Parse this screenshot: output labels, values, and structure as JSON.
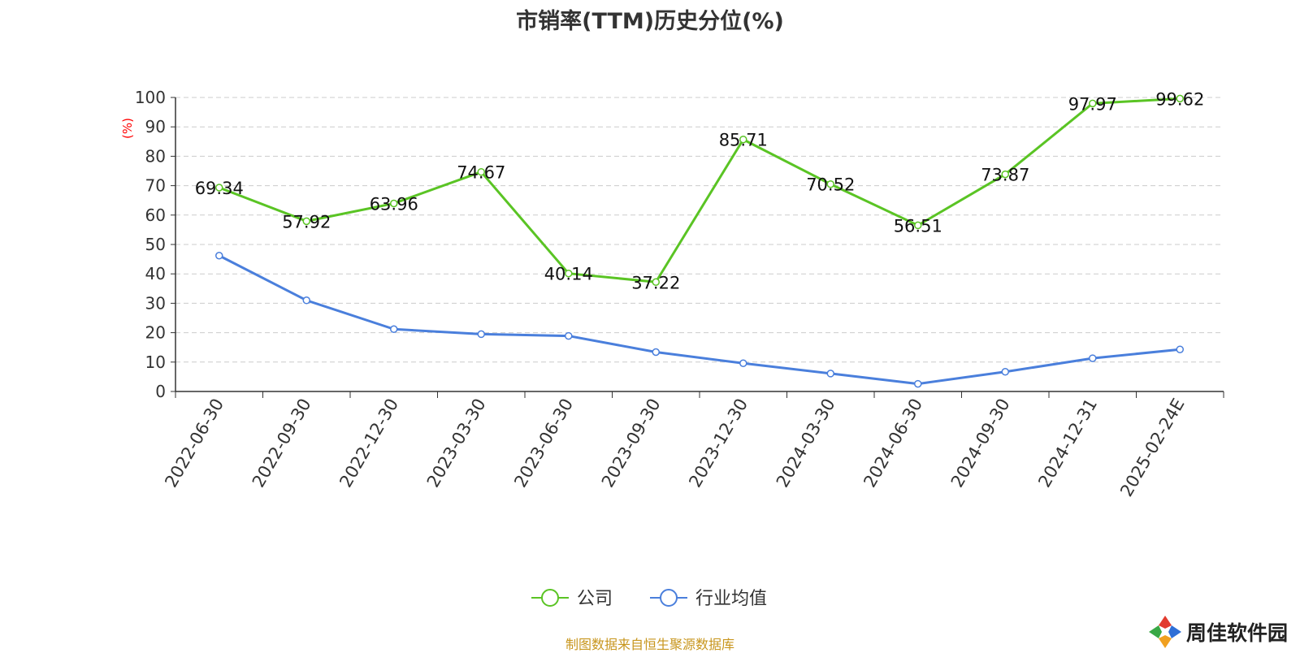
{
  "chart_data": {
    "type": "line",
    "title": "市销率(TTM)历史分位(%)",
    "ylabel": "(%)",
    "xlabel": "",
    "ylim": [
      0,
      100
    ],
    "yticks": [
      0,
      10,
      20,
      30,
      40,
      50,
      60,
      70,
      80,
      90,
      100
    ],
    "grid": true,
    "legend_position": "bottom",
    "categories": [
      "2022-06-30",
      "2022-09-30",
      "2022-12-30",
      "2023-03-30",
      "2023-06-30",
      "2023-09-30",
      "2023-12-30",
      "2024-03-30",
      "2024-06-30",
      "2024-09-30",
      "2024-12-31",
      "2025-02-24E"
    ],
    "series": [
      {
        "name": "公司",
        "color": "#5ac424",
        "show_labels": true,
        "values": [
          69.34,
          57.92,
          63.96,
          74.67,
          40.14,
          37.22,
          85.71,
          70.52,
          56.51,
          73.87,
          97.97,
          99.62
        ]
      },
      {
        "name": "行业均值",
        "color": "#4a7fdc",
        "show_labels": false,
        "values": [
          46.2,
          31.0,
          21.2,
          19.5,
          18.9,
          13.4,
          9.6,
          6.1,
          2.6,
          6.7,
          11.3,
          14.3
        ]
      }
    ]
  },
  "source_note": "制图数据来自恒生聚源数据库",
  "logo": {
    "text": "周佳软件园"
  },
  "colors": {
    "axis": "#333333",
    "grid": "#cccccc",
    "ylabel": "#ff0000",
    "source": "#c8961e"
  }
}
